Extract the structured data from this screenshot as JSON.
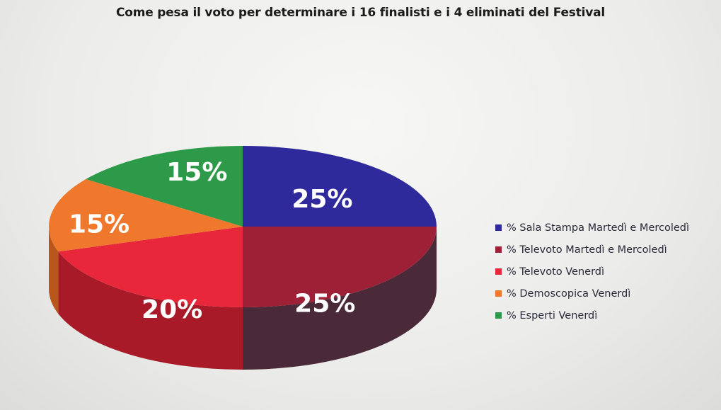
{
  "chart_data": {
    "type": "pie",
    "title": "Come pesa il voto per determinare i 16 finalisti e i 4 eliminati del Festival",
    "slices": [
      {
        "name": "% Sala Stampa Martedì e Mercoledì",
        "value": 25,
        "label": "25%",
        "color": "#2e2a9c",
        "side_color": "#1e1a66"
      },
      {
        "name": "% Televoto Martedì e Mercoledì",
        "value": 25,
        "label": "25%",
        "color": "#9e2036",
        "side_color": "#4a2a38"
      },
      {
        "name": "% Televoto Venerdì",
        "value": 20,
        "label": "20%",
        "color": "#e8283a",
        "side_color": "#a81a28"
      },
      {
        "name": "% Demoscopica Venerdì",
        "value": 15,
        "label": "15%",
        "color": "#f0782c",
        "side_color": "#b8561c"
      },
      {
        "name": "% Esperti Venerdì",
        "value": 15,
        "label": "15%",
        "color": "#2c9a48",
        "side_color": "#1c6a30"
      }
    ],
    "legend_position": "right"
  }
}
